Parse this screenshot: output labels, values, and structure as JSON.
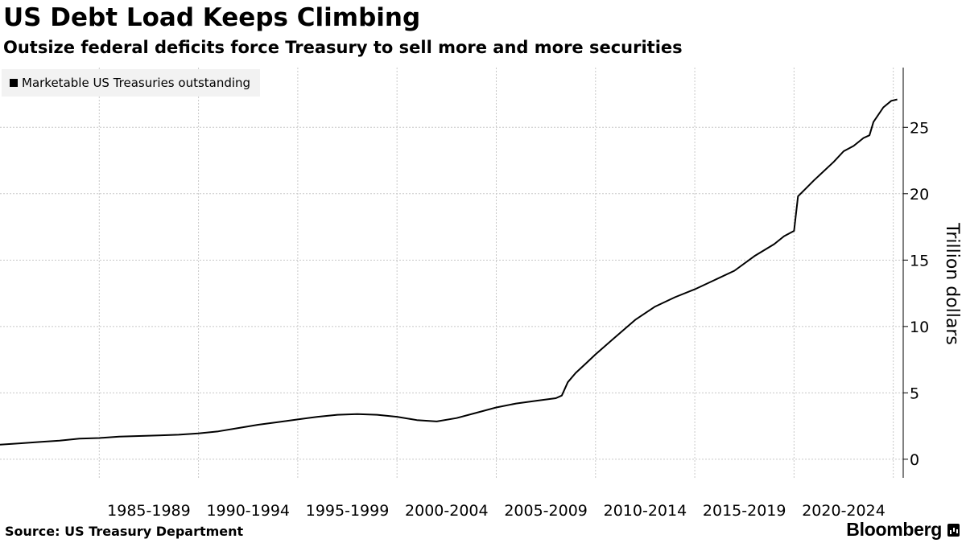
{
  "header": {
    "title": "US Debt Load Keeps Climbing",
    "subtitle": "Outsize federal deficits force Treasury to sell more and more securities"
  },
  "footer": {
    "source": "Source: US Treasury Department",
    "brand": "Bloomberg"
  },
  "colors": {
    "line": "#000000",
    "grid": "#c8c8c8",
    "legend_bg": "#f2f2f2"
  },
  "chart_data": {
    "type": "line",
    "title": "US Debt Load Keeps Climbing",
    "subtitle": "Outsize federal deficits force Treasury to sell more and more securities",
    "ylabel": "Trillion dollars",
    "ylim": [
      -1.4,
      29.5
    ],
    "yticks": [
      0,
      5,
      10,
      15,
      20,
      25
    ],
    "xlim": [
      1980.0,
      2025.5
    ],
    "categories": [
      "1985-1989",
      "1990-1994",
      "1995-1999",
      "2000-2004",
      "2005-2009",
      "2010-2014",
      "2015-2019",
      "2020-2024"
    ],
    "category_spans": [
      [
        1985,
        1990
      ],
      [
        1990,
        1995
      ],
      [
        1995,
        2000
      ],
      [
        2000,
        2005
      ],
      [
        2005,
        2010
      ],
      [
        2010,
        2015
      ],
      [
        2015,
        2020
      ],
      [
        2020,
        2025
      ]
    ],
    "legend_position": "top-left",
    "grid": true,
    "series": [
      {
        "name": "Marketable US Treasuries outstanding",
        "points": [
          [
            1980.0,
            1.1
          ],
          [
            1981.0,
            1.2
          ],
          [
            1982.0,
            1.3
          ],
          [
            1983.0,
            1.4
          ],
          [
            1984.0,
            1.55
          ],
          [
            1985.0,
            1.6
          ],
          [
            1986.0,
            1.7
          ],
          [
            1987.0,
            1.75
          ],
          [
            1988.0,
            1.8
          ],
          [
            1989.0,
            1.85
          ],
          [
            1990.0,
            1.95
          ],
          [
            1991.0,
            2.1
          ],
          [
            1992.0,
            2.35
          ],
          [
            1993.0,
            2.6
          ],
          [
            1994.0,
            2.8
          ],
          [
            1995.0,
            3.0
          ],
          [
            1996.0,
            3.2
          ],
          [
            1997.0,
            3.35
          ],
          [
            1998.0,
            3.4
          ],
          [
            1999.0,
            3.35
          ],
          [
            2000.0,
            3.2
          ],
          [
            2001.0,
            2.95
          ],
          [
            2002.0,
            2.85
          ],
          [
            2003.0,
            3.1
          ],
          [
            2004.0,
            3.5
          ],
          [
            2005.0,
            3.9
          ],
          [
            2006.0,
            4.2
          ],
          [
            2007.0,
            4.4
          ],
          [
            2008.0,
            4.6
          ],
          [
            2008.3,
            4.8
          ],
          [
            2008.6,
            5.8
          ],
          [
            2009.0,
            6.5
          ],
          [
            2009.5,
            7.2
          ],
          [
            2010.0,
            7.9
          ],
          [
            2011.0,
            9.2
          ],
          [
            2012.0,
            10.5
          ],
          [
            2013.0,
            11.5
          ],
          [
            2014.0,
            12.2
          ],
          [
            2015.0,
            12.8
          ],
          [
            2016.0,
            13.5
          ],
          [
            2017.0,
            14.2
          ],
          [
            2018.0,
            15.3
          ],
          [
            2019.0,
            16.2
          ],
          [
            2019.5,
            16.8
          ],
          [
            2020.0,
            17.2
          ],
          [
            2020.2,
            19.8
          ],
          [
            2020.6,
            20.4
          ],
          [
            2021.0,
            21.0
          ],
          [
            2022.0,
            22.4
          ],
          [
            2022.5,
            23.2
          ],
          [
            2023.0,
            23.6
          ],
          [
            2023.5,
            24.2
          ],
          [
            2023.8,
            24.4
          ],
          [
            2024.0,
            25.4
          ],
          [
            2024.5,
            26.5
          ],
          [
            2024.9,
            27.0
          ],
          [
            2025.2,
            27.1
          ]
        ]
      }
    ]
  }
}
